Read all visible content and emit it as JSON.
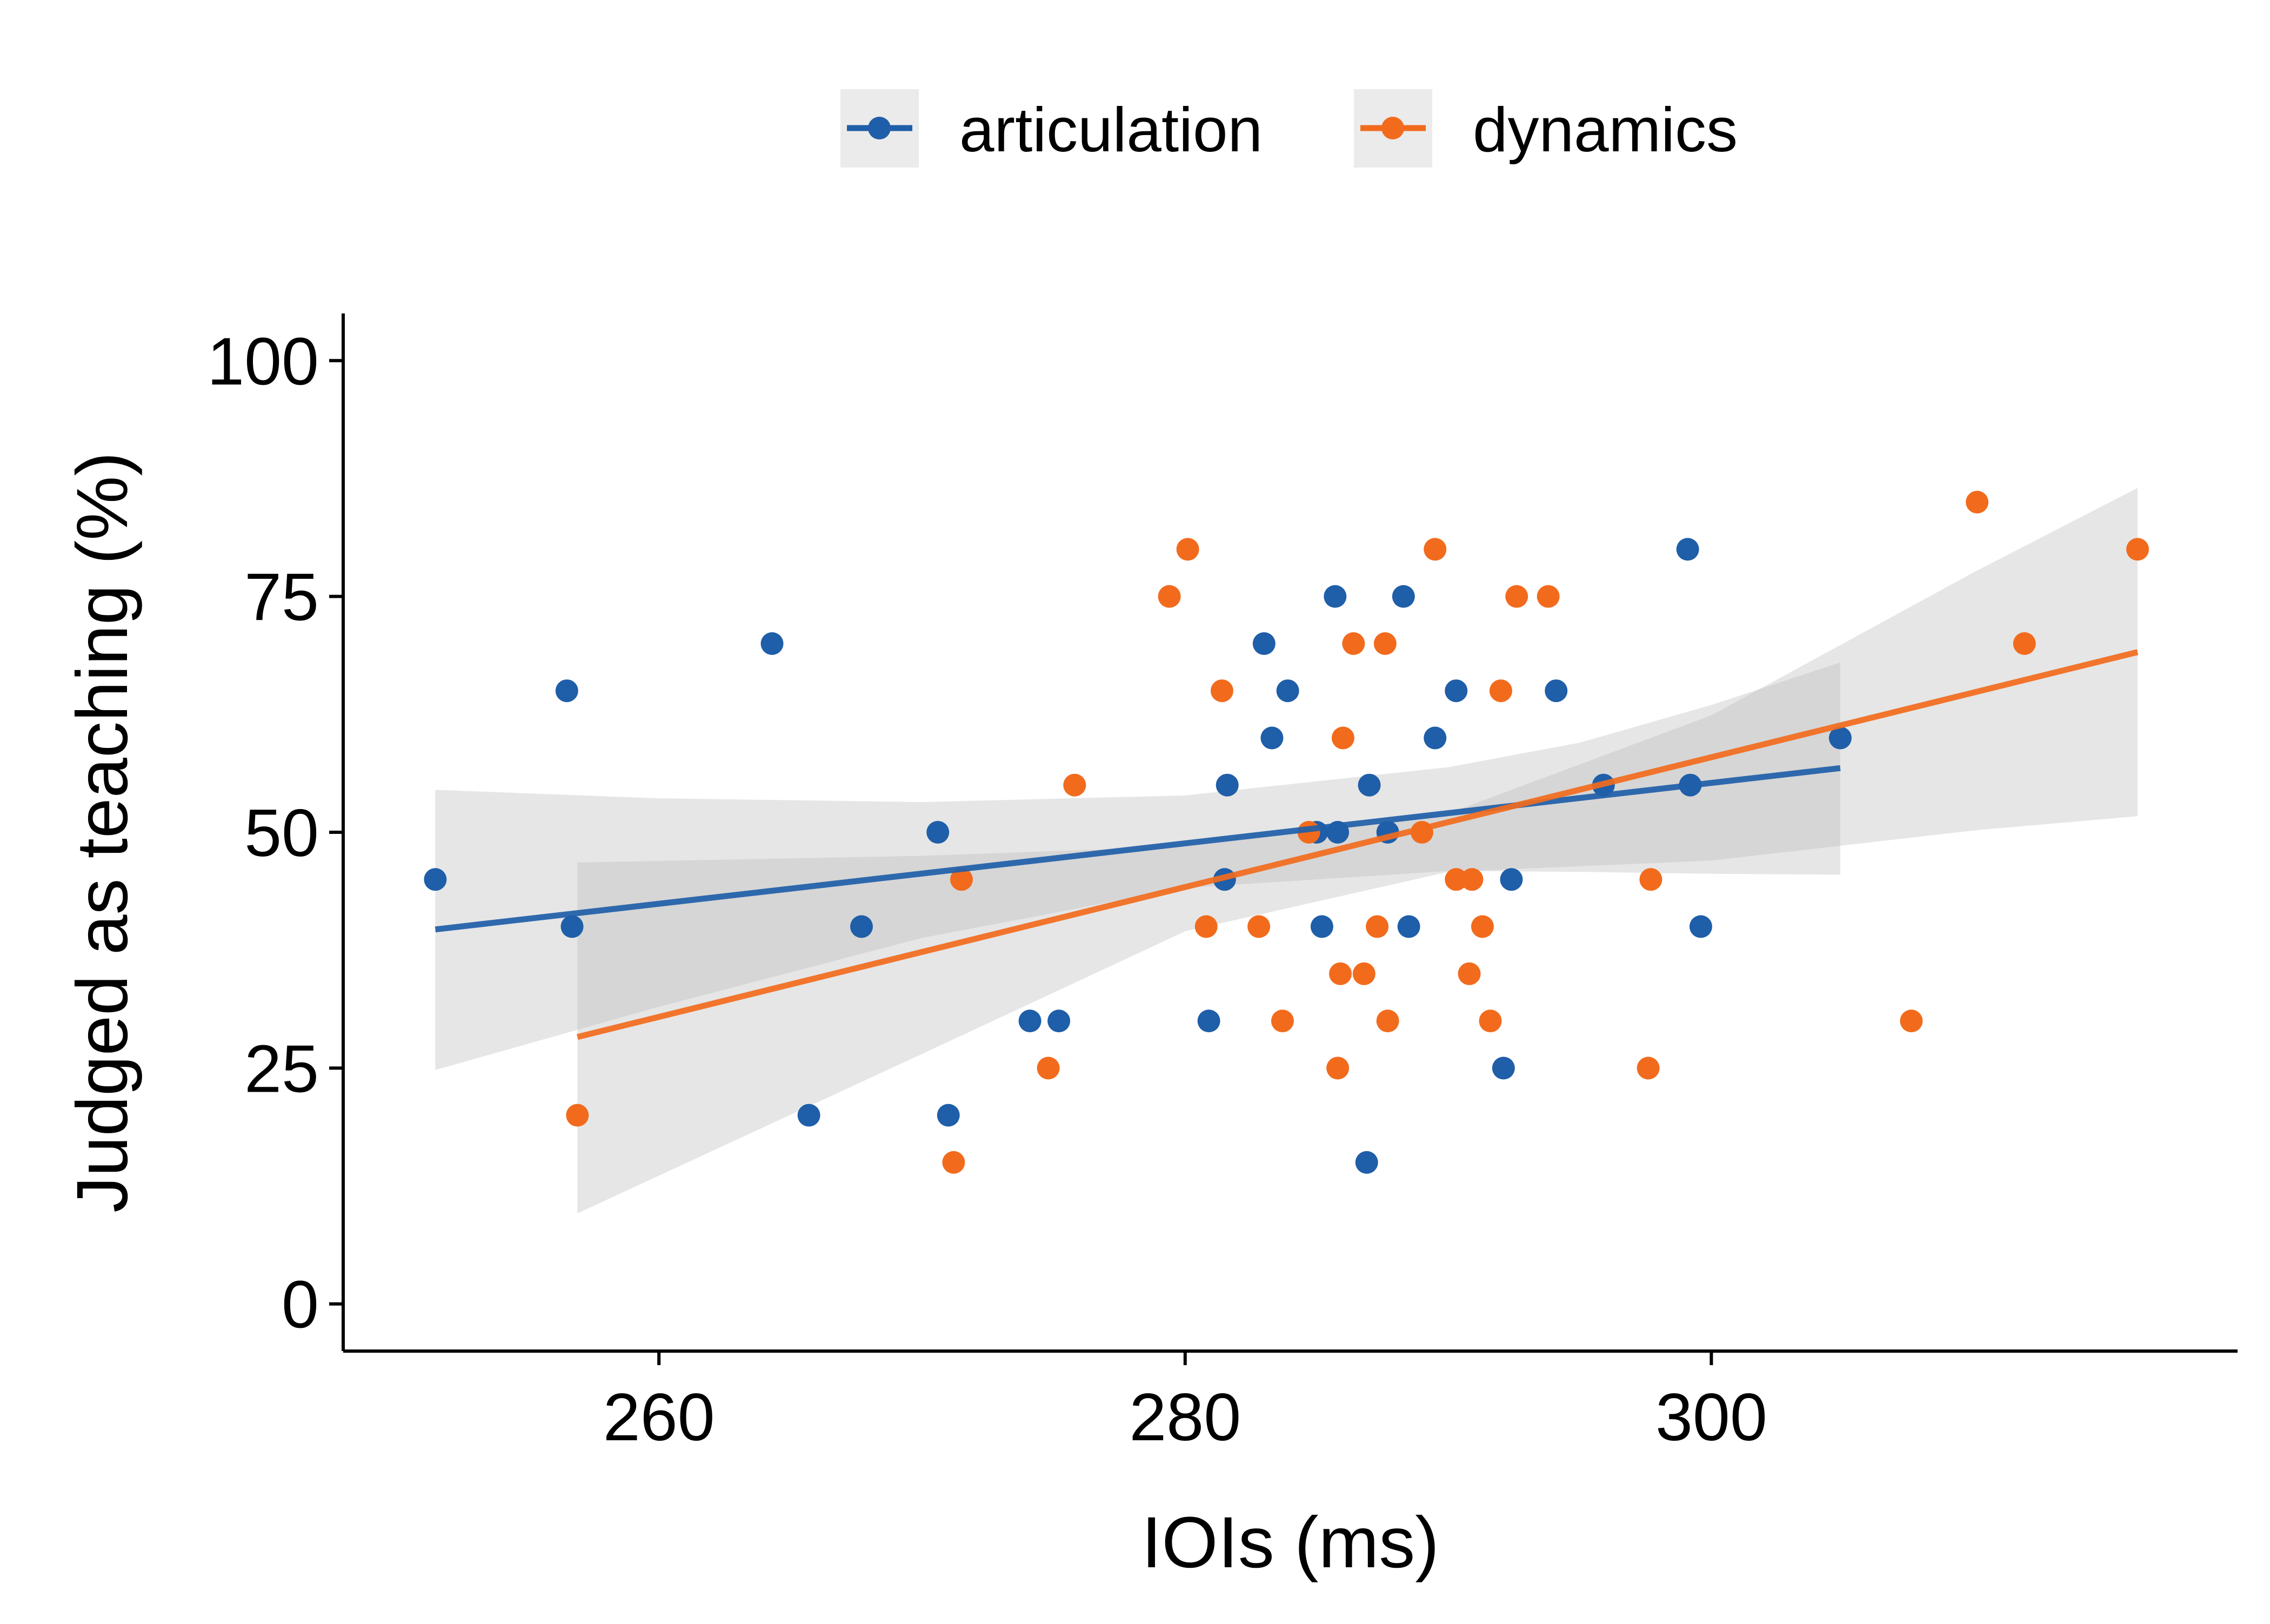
{
  "chart_data": {
    "type": "scatter",
    "title": "",
    "xlabel": "IOIs (ms)",
    "ylabel": "Judged as teaching (%)",
    "xlim": [
      248,
      320
    ],
    "ylim": [
      -5,
      105
    ],
    "xticks": [
      260,
      280,
      300
    ],
    "yticks": [
      0,
      25,
      50,
      75,
      100
    ],
    "grid": false,
    "legend_position": "top",
    "series": [
      {
        "name": "articulation",
        "color": "#1f5ea8",
        "points": [
          [
            251.5,
            45
          ],
          [
            256.5,
            65
          ],
          [
            256.7,
            40
          ],
          [
            264.3,
            70
          ],
          [
            265.7,
            20
          ],
          [
            267.7,
            40
          ],
          [
            270.6,
            50
          ],
          [
            271.0,
            20
          ],
          [
            274.1,
            30
          ],
          [
            275.2,
            30
          ],
          [
            280.9,
            30
          ],
          [
            281.5,
            45
          ],
          [
            281.6,
            55
          ],
          [
            283.0,
            70
          ],
          [
            283.3,
            60
          ],
          [
            283.9,
            65
          ],
          [
            285.0,
            50
          ],
          [
            285.2,
            40
          ],
          [
            285.7,
            75
          ],
          [
            285.8,
            50
          ],
          [
            286.9,
            15
          ],
          [
            287.0,
            55
          ],
          [
            287.7,
            50
          ],
          [
            288.3,
            75
          ],
          [
            288.5,
            40
          ],
          [
            289.5,
            60
          ],
          [
            290.3,
            65
          ],
          [
            292.1,
            25
          ],
          [
            292.4,
            45
          ],
          [
            294.1,
            65
          ],
          [
            295.9,
            55
          ],
          [
            299.1,
            80
          ],
          [
            299.2,
            55
          ],
          [
            299.6,
            40
          ],
          [
            304.9,
            60
          ]
        ],
        "fit": {
          "x": [
            251.5,
            304.9
          ],
          "y": [
            39.7,
            56.8
          ]
        },
        "ci": {
          "x": [
            251.5,
            260,
            270,
            280,
            290,
            295,
            300,
            304.9
          ],
          "upper": [
            54.5,
            53.6,
            53.2,
            53.9,
            56.9,
            59.5,
            63.5,
            68.0
          ],
          "lower": [
            24.8,
            31.5,
            38.8,
            44.1,
            45.9,
            45.8,
            45.6,
            45.5
          ]
        }
      },
      {
        "name": "dynamics",
        "color": "#f26b1d",
        "points": [
          [
            256.9,
            20
          ],
          [
            271.2,
            15
          ],
          [
            271.5,
            45
          ],
          [
            274.8,
            25
          ],
          [
            275.8,
            55
          ],
          [
            279.4,
            75
          ],
          [
            280.1,
            80
          ],
          [
            280.8,
            40
          ],
          [
            281.4,
            65
          ],
          [
            282.8,
            40
          ],
          [
            283.7,
            30
          ],
          [
            284.7,
            50
          ],
          [
            285.8,
            25
          ],
          [
            285.9,
            35
          ],
          [
            286.0,
            60
          ],
          [
            286.4,
            70
          ],
          [
            286.8,
            35
          ],
          [
            287.3,
            40
          ],
          [
            287.6,
            70
          ],
          [
            287.7,
            30
          ],
          [
            289.0,
            50
          ],
          [
            289.5,
            80
          ],
          [
            290.3,
            45
          ],
          [
            290.8,
            35
          ],
          [
            290.9,
            45
          ],
          [
            291.3,
            40
          ],
          [
            291.6,
            30
          ],
          [
            292.0,
            65
          ],
          [
            292.6,
            75
          ],
          [
            293.8,
            75
          ],
          [
            297.6,
            25
          ],
          [
            297.7,
            45
          ],
          [
            307.6,
            30
          ],
          [
            310.1,
            85
          ],
          [
            311.9,
            70
          ],
          [
            316.2,
            80
          ]
        ],
        "fit": {
          "x": [
            256.9,
            316.2
          ],
          "y": [
            28.3,
            69.1
          ]
        },
        "ci": {
          "x": [
            256.9,
            270,
            280,
            290,
            300,
            310,
            316.2
          ],
          "upper": [
            46.8,
            47.5,
            48.5,
            52.0,
            62.4,
            77.6,
            86.5
          ],
          "lower": [
            9.6,
            26.5,
            39.5,
            45.8,
            47.0,
            50.2,
            51.7
          ]
        }
      }
    ]
  }
}
